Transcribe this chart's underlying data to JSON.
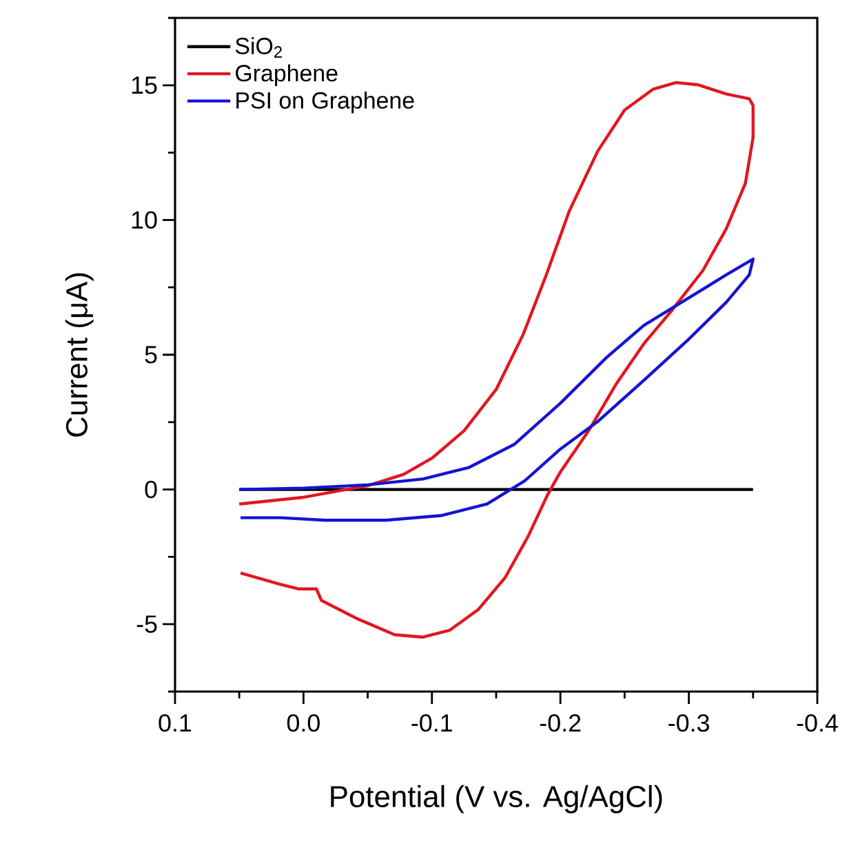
{
  "chart_data": {
    "type": "line",
    "xlabel": "Potential (V vs. Ag/AgCl)",
    "ylabel": "Current (μA)",
    "xlim": [
      0.1,
      -0.4
    ],
    "ylim": [
      -7.5,
      17.5
    ],
    "xticks": [
      0.1,
      {
        "value": 0.05,
        "label": null
      },
      {
        "value": 0,
        "label": "0.0"
      },
      {
        "value": -0.05,
        "label": null
      },
      -0.1,
      {
        "value": -0.15,
        "label": null
      },
      -0.2,
      {
        "value": -0.25,
        "label": null
      },
      -0.3,
      {
        "value": -0.35,
        "label": null
      },
      -0.4
    ],
    "yticks": [
      {
        "value": -7.5,
        "label": null
      },
      -5,
      {
        "value": -2.5,
        "label": null
      },
      0,
      {
        "value": 2.5,
        "label": null
      },
      5,
      {
        "value": 7.5,
        "label": null
      },
      10,
      {
        "value": 12.5,
        "label": null
      },
      15,
      {
        "value": 17.5,
        "label": null
      }
    ],
    "legend": "top left",
    "grid": false,
    "marker": "none",
    "line_style": "solid",
    "series": [
      {
        "name": "SiO$_{2}$",
        "color": "#000000",
        "x": [
          0.05,
          -0.35
        ],
        "values": [
          0,
          0
        ]
      },
      {
        "name": "Graphene",
        "color": "#e3161e",
        "x": [
          0.05,
          0.0,
          -0.05,
          -0.078,
          -0.1,
          -0.125,
          -0.15,
          -0.171,
          -0.189,
          -0.207,
          -0.229,
          -0.25,
          -0.272,
          -0.29,
          -0.307,
          -0.329,
          -0.347,
          -0.35,
          -0.35,
          -0.344,
          -0.329,
          -0.311,
          -0.286,
          -0.265,
          -0.243,
          -0.222,
          -0.2,
          -0.19,
          -0.175,
          -0.157,
          -0.136,
          -0.114,
          -0.093,
          -0.071,
          -0.042,
          -0.014,
          -0.01,
          0.004,
          0.018,
          0.049
        ],
        "values": [
          -0.54,
          -0.29,
          0.14,
          0.56,
          1.16,
          2.18,
          3.71,
          5.75,
          7.96,
          10.34,
          12.55,
          14.08,
          14.85,
          15.1,
          15.02,
          14.68,
          14.5,
          14.25,
          13.06,
          11.36,
          9.66,
          8.13,
          6.6,
          5.41,
          3.88,
          2.18,
          0.65,
          -0.2,
          -1.73,
          -3.27,
          -4.46,
          -5.22,
          -5.48,
          -5.39,
          -4.8,
          -4.12,
          -3.69,
          -3.69,
          -3.52,
          -3.1
        ]
      },
      {
        "name": "PSI on Graphene",
        "color": "#1414d2",
        "x": [
          0.05,
          0.0,
          -0.05,
          -0.093,
          -0.129,
          -0.164,
          -0.2,
          -0.236,
          -0.265,
          -0.3,
          -0.329,
          -0.35,
          -0.347,
          -0.329,
          -0.3,
          -0.265,
          -0.229,
          -0.2,
          -0.172,
          -0.143,
          -0.107,
          -0.064,
          -0.017,
          0.018,
          0.049
        ],
        "values": [
          0.0,
          0.05,
          0.17,
          0.39,
          0.82,
          1.67,
          3.2,
          4.9,
          6.09,
          7.11,
          7.96,
          8.55,
          7.96,
          6.94,
          5.58,
          4.05,
          2.52,
          1.5,
          0.31,
          -0.54,
          -0.97,
          -1.14,
          -1.14,
          -1.05,
          -1.05
        ]
      }
    ]
  }
}
